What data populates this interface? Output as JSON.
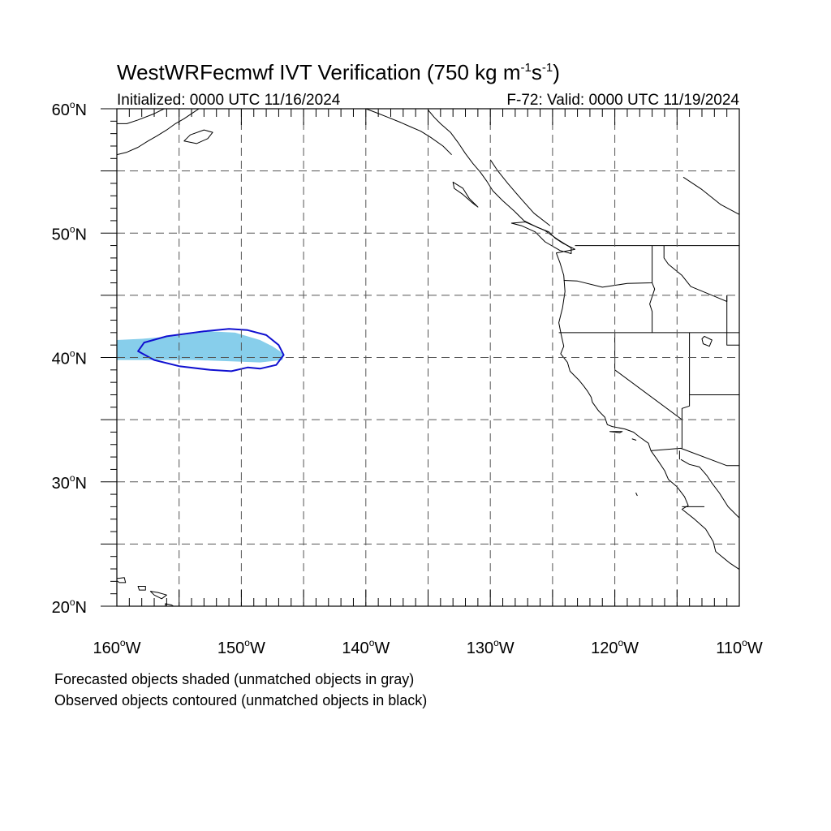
{
  "title": {
    "prefix": "WestWRFecmwf IVT Verification (750 kg m",
    "exp1": "-1",
    "mid": "s",
    "exp2": "-1",
    "suffix": ")"
  },
  "subtitle_left": "Initialized: 0000 UTC 11/16/2024",
  "subtitle_right": "F-72: Valid: 0000 UTC 11/19/2024",
  "map": {
    "projection": "cylindrical-equidistant",
    "lon_range": [
      -160,
      -110
    ],
    "lat_range": [
      20,
      60
    ],
    "grid": "dashed",
    "grid_lon_step": 5,
    "grid_lat_step": 5
  },
  "axes": {
    "lon_ticks": [
      {
        "value": -160,
        "label": "160",
        "suffix": "W"
      },
      {
        "value": -150,
        "label": "150",
        "suffix": "W"
      },
      {
        "value": -140,
        "label": "140",
        "suffix": "W"
      },
      {
        "value": -130,
        "label": "130",
        "suffix": "W"
      },
      {
        "value": -120,
        "label": "120",
        "suffix": "W"
      },
      {
        "value": -110,
        "label": "110",
        "suffix": "W"
      }
    ],
    "lat_ticks": [
      {
        "value": 60,
        "label": "60",
        "suffix": "N"
      },
      {
        "value": 50,
        "label": "50",
        "suffix": "N"
      },
      {
        "value": 40,
        "label": "40",
        "suffix": "N"
      },
      {
        "value": 30,
        "label": "30",
        "suffix": "N"
      },
      {
        "value": 20,
        "label": "20",
        "suffix": "N"
      }
    ],
    "degree_symbol": "o"
  },
  "colors": {
    "forecast_fill": "#87ceeb",
    "observed_contour": "#1010d0",
    "coastline": "#000000",
    "grid": "#555555"
  },
  "forecast_object": [
    [
      -160.0,
      41.4
    ],
    [
      -158.0,
      41.5
    ],
    [
      -155.5,
      41.7
    ],
    [
      -152.5,
      42.1
    ],
    [
      -150.5,
      42.0
    ],
    [
      -148.5,
      41.4
    ],
    [
      -147.5,
      40.9
    ],
    [
      -146.6,
      40.3
    ],
    [
      -146.7,
      39.8
    ],
    [
      -148.5,
      39.6
    ],
    [
      -151.0,
      39.7
    ],
    [
      -154.0,
      39.8
    ],
    [
      -157.0,
      39.8
    ],
    [
      -160.0,
      39.8
    ]
  ],
  "observed_object": [
    [
      -158.3,
      40.5
    ],
    [
      -157.8,
      41.2
    ],
    [
      -156.0,
      41.7
    ],
    [
      -153.0,
      42.1
    ],
    [
      -151.0,
      42.3
    ],
    [
      -149.5,
      42.2
    ],
    [
      -148.0,
      41.8
    ],
    [
      -147.0,
      41.0
    ],
    [
      -146.6,
      40.2
    ],
    [
      -147.2,
      39.4
    ],
    [
      -148.5,
      39.1
    ],
    [
      -149.5,
      39.2
    ],
    [
      -150.8,
      38.9
    ],
    [
      -152.5,
      39.0
    ],
    [
      -155.0,
      39.3
    ],
    [
      -157.0,
      39.8
    ],
    [
      -158.3,
      40.5
    ]
  ],
  "legend": {
    "line1": "Forecasted objects shaded (unmatched objects in gray)",
    "line2": "Observed objects contoured (unmatched objects in black)"
  }
}
